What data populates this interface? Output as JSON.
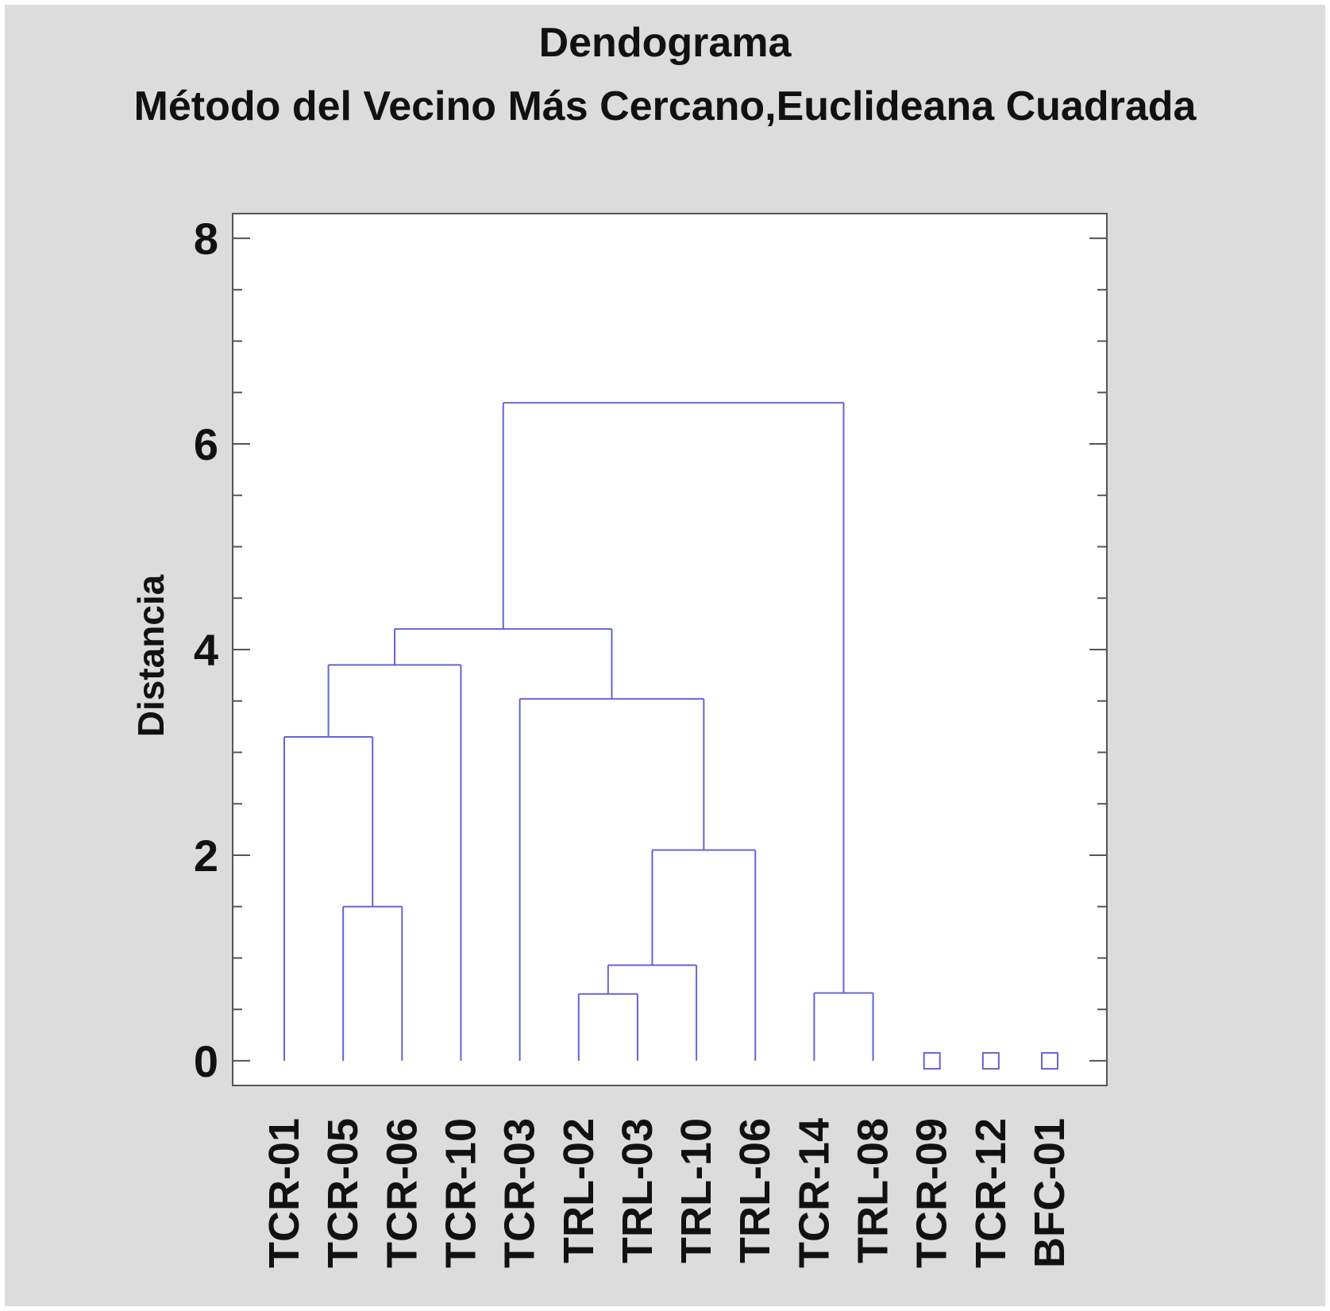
{
  "chart_data": {
    "type": "dendrogram",
    "title": "Dendograma",
    "subtitle": "Método del Vecino Más Cercano,Euclideana Cuadrada",
    "xlabel": "",
    "ylabel": "Distancia",
    "ylim": [
      -0.24,
      8.24
    ],
    "y_ticks": [
      "0",
      "2",
      "4",
      "6",
      "8"
    ],
    "grid": false,
    "leaves": [
      "TCR-01",
      "TCR-05",
      "TCR-06",
      "TCR-10",
      "TCR-03",
      "TRL-02",
      "TRL-03",
      "TRL-10",
      "TRL-06",
      "TCR-14",
      "TRL-08",
      "TCR-09",
      "TCR-12",
      "BFC-01"
    ],
    "merges": [
      {
        "left": "leaf:1",
        "right": "leaf:2",
        "height": 1.5
      },
      {
        "left": "leaf:0",
        "right": "node:0",
        "height": 3.15
      },
      {
        "left": "node:1",
        "right": "leaf:3",
        "height": 3.85
      },
      {
        "left": "leaf:5",
        "right": "leaf:6",
        "height": 0.65
      },
      {
        "left": "node:3",
        "right": "leaf:7",
        "height": 0.93
      },
      {
        "left": "node:4",
        "right": "leaf:8",
        "height": 2.05
      },
      {
        "left": "leaf:4",
        "right": "node:5",
        "height": 3.52
      },
      {
        "left": "node:2",
        "right": "node:6",
        "height": 4.2
      },
      {
        "left": "leaf:9",
        "right": "leaf:10",
        "height": 0.66
      },
      {
        "left": "node:7",
        "right": "node:8",
        "height": 6.4
      }
    ],
    "singletons": [
      "TCR-09",
      "TCR-12",
      "BFC-01"
    ],
    "colors": {
      "branch": "#6464d4",
      "frame": "#555555",
      "background": "#dcdcdc",
      "plot_background": "#ffffff"
    }
  }
}
